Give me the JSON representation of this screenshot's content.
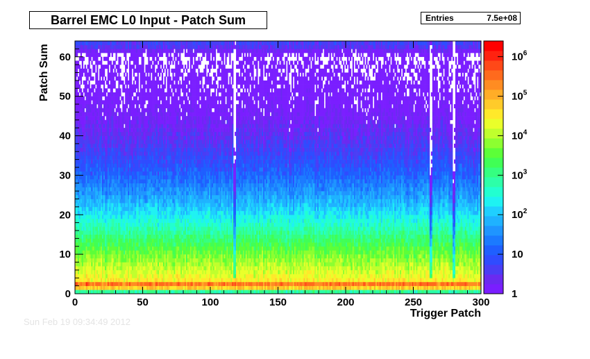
{
  "title": "Barrel EMC L0 Input - Patch Sum",
  "stats": {
    "label": "Entries",
    "value": "7.5e+08"
  },
  "date_stamp": "Sun Feb 19 09:34:49 2012",
  "chart_data": {
    "type": "heatmap",
    "title": "Barrel EMC L0 Input - Patch Sum",
    "xlabel": "Trigger Patch",
    "ylabel": "Patch Sum",
    "x_range": [
      0,
      300
    ],
    "y_range": [
      0,
      64
    ],
    "x_ticks": [
      0,
      50,
      100,
      150,
      200,
      250,
      300
    ],
    "y_ticks": [
      0,
      10,
      20,
      30,
      40,
      50,
      60
    ],
    "z_scale": "log",
    "z_range": [
      1,
      2500000
    ],
    "z_tick_labels": [
      "1",
      "10",
      "10^2",
      "10^3",
      "10^4",
      "10^5",
      "10^6"
    ],
    "entries": "7.5e+08",
    "palette_colors": [
      "#7a1eff",
      "#6a2af0",
      "#4a3df5",
      "#2f4cff",
      "#1f5fff",
      "#1b7aff",
      "#1f95ff",
      "#1fb2ff",
      "#1fcfff",
      "#1ef2f2",
      "#22ffd0",
      "#2dffa8",
      "#35ff80",
      "#40ff55",
      "#5cff38",
      "#8cff30",
      "#c0ff2d",
      "#eaff2a",
      "#ffe92a",
      "#ffcb2a",
      "#ffad27",
      "#ff8c22",
      "#ff6a1d",
      "#ff4818",
      "#ff2210",
      "#ff0000"
    ],
    "bins": {
      "description": "counts per bin, 300 trigger patches x 64 patch sum values; per-bin values estimated from color",
      "profile": [
        {
          "y": 0,
          "count": 300
        },
        {
          "y": 1,
          "count": 2000
        },
        {
          "y": 2,
          "count": 2000000
        },
        {
          "y": 3,
          "count": 40000
        },
        {
          "y": 5,
          "count": 20000
        },
        {
          "y": 10,
          "count": 5000
        },
        {
          "y": 15,
          "count": 1000
        },
        {
          "y": 20,
          "count": 200
        },
        {
          "y": 25,
          "count": 50
        },
        {
          "y": 30,
          "count": 15
        },
        {
          "y": 35,
          "count": 6
        },
        {
          "y": 40,
          "count": 3
        },
        {
          "y": 45,
          "count": 1.5
        },
        {
          "y": 50,
          "count": 1
        },
        {
          "y": 60,
          "count": 0.5
        },
        {
          "y": 63,
          "count": 5
        }
      ]
    }
  }
}
